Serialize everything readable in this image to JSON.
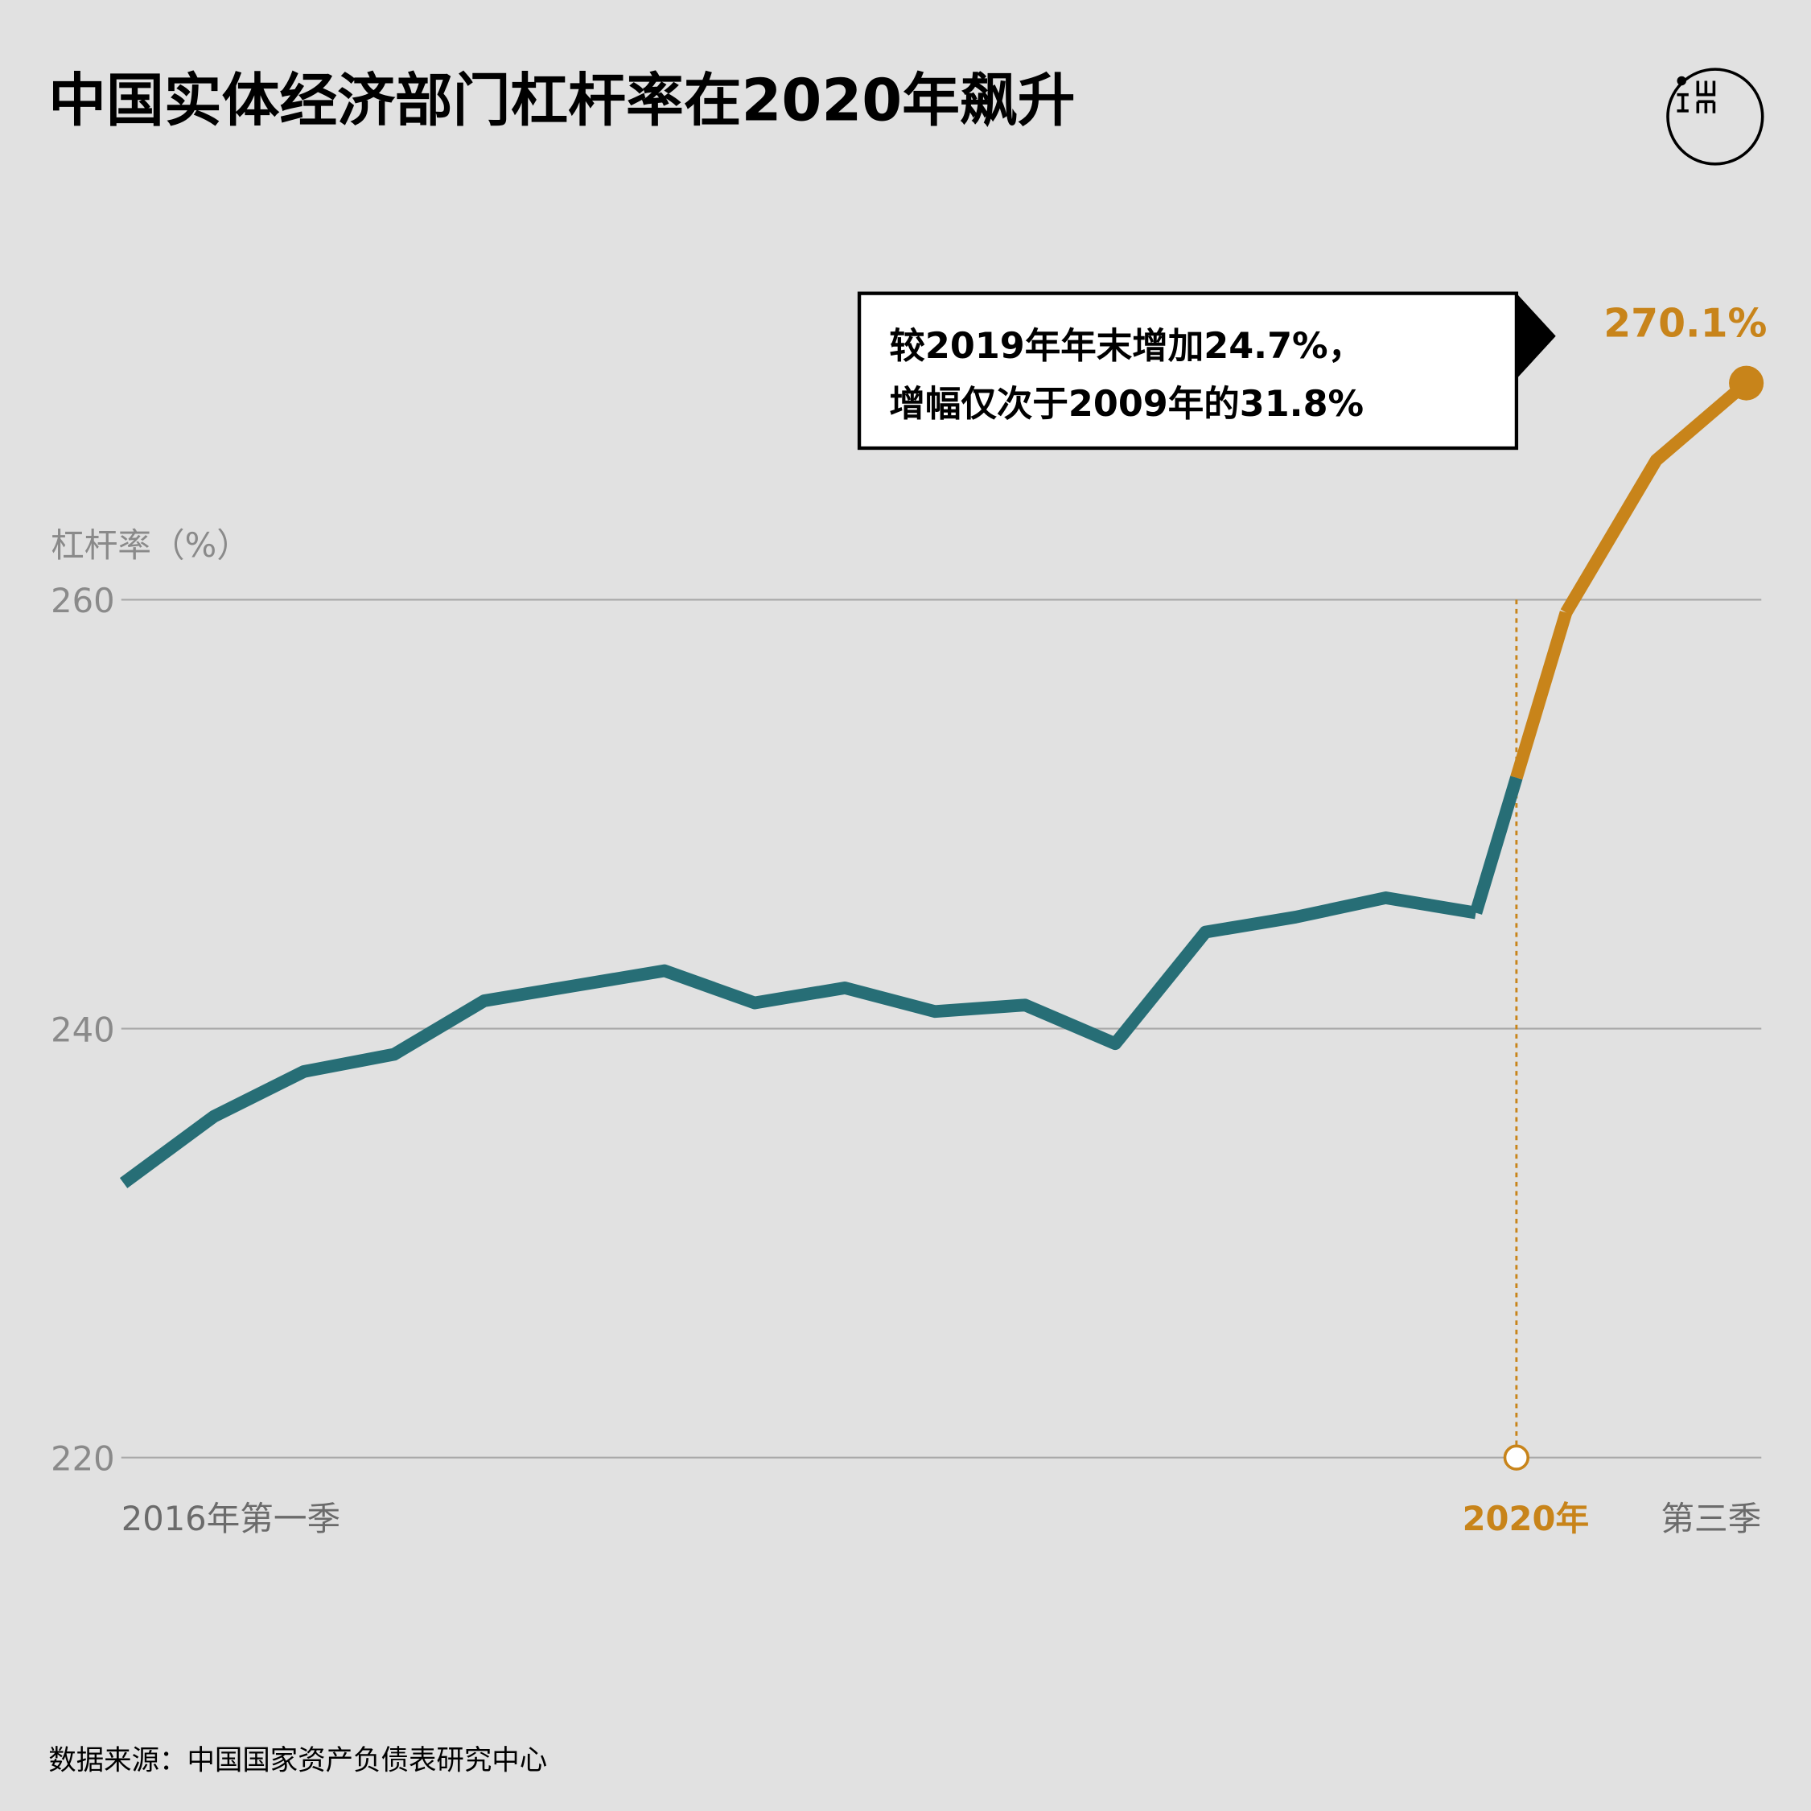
{
  "chart_data": {
    "type": "line",
    "title": "中国实体经济部门杠杆率在2020年飙升",
    "y_label": "杠杆率（%）",
    "categories": [
      "2016年第一季",
      null,
      null,
      null,
      null,
      null,
      null,
      null,
      null,
      null,
      null,
      null,
      null,
      null,
      null,
      null,
      null,
      null,
      "第三季"
    ],
    "values": [
      232.8,
      235.9,
      238.0,
      238.8,
      241.3,
      242.0,
      242.7,
      241.2,
      241.9,
      240.8,
      241.1,
      239.3,
      244.5,
      245.2,
      246.1,
      245.4,
      259.4,
      266.5,
      270.1
    ],
    "value_labels": [
      null,
      null,
      null,
      null,
      null,
      null,
      null,
      null,
      null,
      null,
      null,
      null,
      null,
      null,
      null,
      null,
      null,
      null,
      "270.1%"
    ],
    "color": "#276e76",
    "highlight_color": "#c8841a",
    "highlight_label": "2020年",
    "annotation": [
      "较2019年年末增加24.7%，",
      "增幅仅次于2009年的31.8%"
    ],
    "source": "数据来源：中国国家资产负债表研究中心",
    "ylim": [
      220,
      275
    ],
    "yticks": [
      220,
      240,
      260
    ],
    "grid": true
  }
}
